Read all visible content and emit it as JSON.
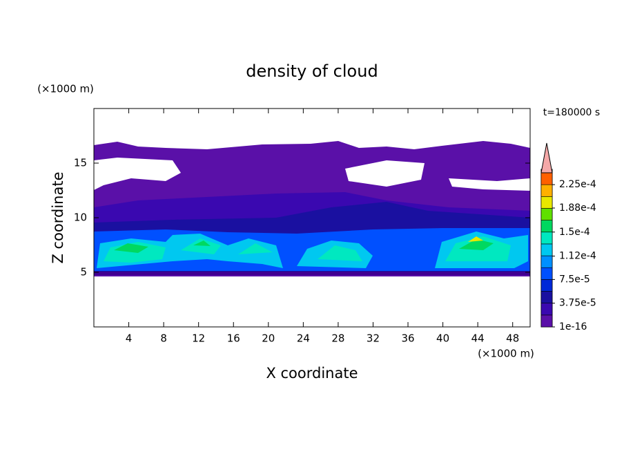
{
  "chart_data": {
    "type": "contour",
    "title": "density of cloud",
    "x_label": "X coordinate",
    "y_label": "Z coordinate",
    "x_unit": "(×1000 m)",
    "y_unit": "(×1000 m)",
    "annotation": "t=180000 s",
    "xlim": [
      0,
      50
    ],
    "ylim": [
      0,
      20
    ],
    "xticks": [
      4,
      8,
      12,
      16,
      20,
      24,
      28,
      32,
      36,
      40,
      44,
      48
    ],
    "yticks": [
      5,
      10,
      15
    ],
    "colorbar": {
      "levels": [
        1e-16,
        1.875e-05,
        3.75e-05,
        5.625e-05,
        7.5e-05,
        9.375e-05,
        0.0001125,
        0.00013125,
        0.00015,
        0.00016875,
        0.0001875,
        0.00020625,
        0.000225,
        0.00024375
      ],
      "colors": [
        "#5a10a8",
        "#3a08b0",
        "#1a10a0",
        "#0028d8",
        "#0050ff",
        "#0090ff",
        "#00c8f0",
        "#00e8c0",
        "#00d860",
        "#60e000",
        "#e8e800",
        "#ffb000",
        "#ff6000"
      ],
      "extend_color": "#f4a8a8",
      "ticks": [
        {
          "value": 1e-16,
          "label": "1e-16"
        },
        {
          "value": 3.75e-05,
          "label": "3.75e-5"
        },
        {
          "value": 7.5e-05,
          "label": "7.5e-5"
        },
        {
          "value": 0.000112,
          "label": "1.12e-4"
        },
        {
          "value": 0.00015,
          "label": "1.5e-4"
        },
        {
          "value": 0.000188,
          "label": "1.88e-4"
        },
        {
          "value": 0.000225,
          "label": "2.25e-4"
        }
      ]
    }
  }
}
